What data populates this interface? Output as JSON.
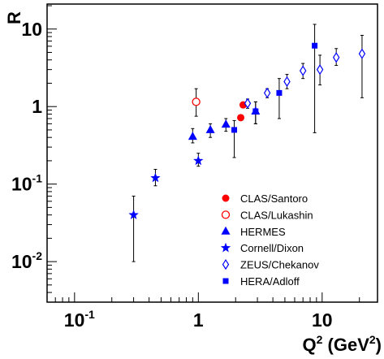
{
  "chart_data": {
    "type": "scatter",
    "ylabel": "R",
    "xlabel_parts": [
      "Q",
      "2",
      " (GeV",
      "2",
      ")"
    ],
    "log_x": true,
    "log_y": true,
    "xlim": [
      0.06,
      28
    ],
    "ylim": [
      0.003,
      21
    ],
    "xticks": [
      {
        "value": 0.1,
        "label": "10",
        "exponent": "-1"
      },
      1,
      10
    ],
    "yticks": [
      {
        "value": 0.01,
        "label": "10",
        "exponent": "-2"
      },
      {
        "value": 0.1,
        "label": "10",
        "exponent": "-1"
      },
      1,
      10
    ],
    "legend": "lower right",
    "series": [
      {
        "name": "CLAS/Santoro",
        "color": "#ff0000",
        "marker": "circle",
        "x": [
          2.2,
          2.3
        ],
        "y": [
          0.72,
          1.05
        ],
        "ylow": [
          0.66,
          0.97
        ],
        "yhigh": [
          0.78,
          1.13
        ]
      },
      {
        "name": "CLAS/Lukashin",
        "color": "#ff0000",
        "marker": "open-circle",
        "x": [
          0.96
        ],
        "y": [
          1.15
        ],
        "ylow": [
          0.75
        ],
        "yhigh": [
          1.7
        ]
      },
      {
        "name": "HERMES",
        "color": "#0000ff",
        "marker": "triangle",
        "x": [
          0.9,
          1.25,
          1.67,
          2.9
        ],
        "y": [
          0.41,
          0.5,
          0.59,
          0.87
        ],
        "ylow": [
          0.34,
          0.4,
          0.48,
          0.6
        ],
        "yhigh": [
          0.52,
          0.6,
          0.7,
          1.15
        ]
      },
      {
        "name": "Cornell/Dixon",
        "color": "#0000ff",
        "marker": "star",
        "x": [
          0.3,
          0.45,
          1.0
        ],
        "y": [
          0.04,
          0.12,
          0.2
        ],
        "ylow": [
          0.01,
          0.095,
          0.17
        ],
        "yhigh": [
          0.07,
          0.155,
          0.25
        ]
      },
      {
        "name": "ZEUS/Chekanov",
        "color": "#0000ff",
        "marker": "open-diamond",
        "x": [
          2.5,
          3.6,
          5.2,
          7.0,
          9.6,
          13,
          21
        ],
        "y": [
          1.1,
          1.5,
          2.1,
          2.9,
          3.0,
          4.3,
          4.8
        ],
        "ylow": [
          0.95,
          1.3,
          1.7,
          2.3,
          1.9,
          3.4,
          1.3
        ],
        "yhigh": [
          1.25,
          1.7,
          2.6,
          3.6,
          4.6,
          5.6,
          8.3
        ]
      },
      {
        "name": "HERA/Adloff",
        "color": "#0000ff",
        "marker": "square",
        "x": [
          1.95,
          2.9,
          4.5,
          8.7
        ],
        "y": [
          0.5,
          0.87,
          1.5,
          6.1
        ],
        "ylow": [
          0.22,
          0.6,
          0.7,
          0.46
        ],
        "yhigh": [
          0.66,
          1.15,
          2.3,
          11.5
        ]
      }
    ]
  }
}
